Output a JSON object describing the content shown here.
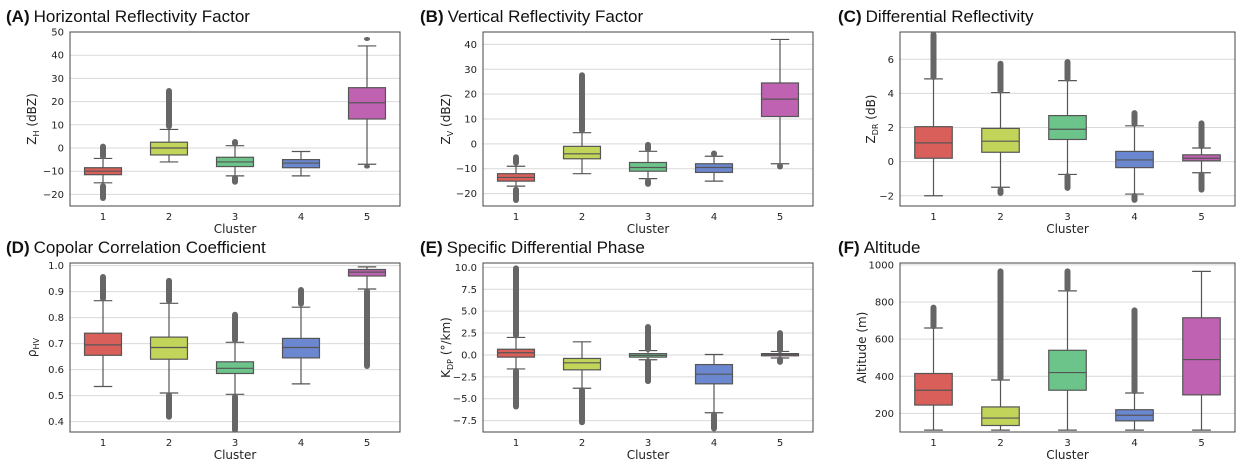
{
  "palette": [
    "#d9605a",
    "#c2d45a",
    "#6cc48a",
    "#6b87cf",
    "#bf62b2"
  ],
  "chart_data": [
    {
      "type": "box",
      "letter": "(A)",
      "title": "Horizontal Reflectivity Factor",
      "xlabel": "Cluster",
      "ylabel_main": "Z",
      "ylabel_sub": "H",
      "ylabel_unit": " (dBZ)",
      "categories": [
        "1",
        "2",
        "3",
        "4",
        "5"
      ],
      "ylim": [
        -25,
        50
      ],
      "yticks": [
        "50",
        "40",
        "30",
        "20",
        "10",
        "0",
        "−10",
        "−20"
      ],
      "ytick_values": [
        50,
        40,
        30,
        20,
        10,
        0,
        -10,
        -20
      ],
      "grid": true,
      "boxes": [
        {
          "whislo": -15,
          "q1": -11.5,
          "med": -10,
          "q3": -8.5,
          "whishi": -4.5,
          "fliers_lo": [
            -16,
            -22
          ],
          "fliers_hi": [
            -4,
            1
          ]
        },
        {
          "whislo": -6,
          "q1": -3,
          "med": 0,
          "q3": 2.5,
          "whishi": 8,
          "fliers_lo": [],
          "fliers_hi": [
            9,
            25
          ]
        },
        {
          "whislo": -12,
          "q1": -8,
          "med": -6,
          "q3": -4,
          "whishi": 1,
          "fliers_lo": [
            -12.5,
            -15
          ],
          "fliers_hi": [
            1.5,
            3
          ]
        },
        {
          "whislo": -12,
          "q1": -8.5,
          "med": -6.5,
          "q3": -5,
          "whishi": -1.5,
          "fliers_lo": [],
          "fliers_hi": []
        },
        {
          "whislo": -7,
          "q1": 12.5,
          "med": 19.5,
          "q3": 26,
          "whishi": 44,
          "fliers_lo": [
            -8,
            -8
          ],
          "fliers_hi": [
            47,
            47
          ]
        }
      ]
    },
    {
      "type": "box",
      "letter": "(B)",
      "title": "Vertical Reflectivity Factor",
      "xlabel": "Cluster",
      "ylabel_main": "Z",
      "ylabel_sub": "V",
      "ylabel_unit": " (dBZ)",
      "categories": [
        "1",
        "2",
        "3",
        "4",
        "5"
      ],
      "ylim": [
        -25,
        45
      ],
      "yticks": [
        "40",
        "30",
        "20",
        "10",
        "0",
        "−10",
        "−20"
      ],
      "ytick_values": [
        40,
        30,
        20,
        10,
        0,
        -10,
        -20
      ],
      "grid": true,
      "boxes": [
        {
          "whislo": -17,
          "q1": -15,
          "med": -13.5,
          "q3": -12,
          "whishi": -9,
          "fliers_lo": [
            -18,
            -23
          ],
          "fliers_hi": [
            -8,
            -5
          ]
        },
        {
          "whislo": -12,
          "q1": -6,
          "med": -4,
          "q3": -1,
          "whishi": 4.5,
          "fliers_lo": [],
          "fliers_hi": [
            5,
            28
          ]
        },
        {
          "whislo": -14,
          "q1": -11,
          "med": -9.5,
          "q3": -7.5,
          "whishi": -3,
          "fliers_lo": [
            -14.5,
            -16.5
          ],
          "fliers_hi": [
            -2.5,
            0
          ]
        },
        {
          "whislo": -15,
          "q1": -11.5,
          "med": -9.5,
          "q3": -8,
          "whishi": -5,
          "fliers_lo": [],
          "fliers_hi": [
            -4.5,
            -3.5
          ]
        },
        {
          "whislo": -8,
          "q1": 11,
          "med": 18,
          "q3": 24.5,
          "whishi": 42,
          "fliers_lo": [
            -8.5,
            -9.5
          ],
          "fliers_hi": []
        }
      ]
    },
    {
      "type": "box",
      "letter": "(C)",
      "title": "Differential Reflectivity",
      "xlabel": "Cluster",
      "ylabel_main": "Z",
      "ylabel_sub": "DR",
      "ylabel_unit": " (dB)",
      "categories": [
        "1",
        "2",
        "3",
        "4",
        "5"
      ],
      "ylim": [
        -2.6,
        7.6
      ],
      "yticks": [
        "6",
        "4",
        "2",
        "0",
        "−2"
      ],
      "ytick_values": [
        6,
        4,
        2,
        0,
        -2
      ],
      "grid": true,
      "boxes": [
        {
          "whislo": -2,
          "q1": 0.2,
          "med": 1.1,
          "q3": 2.05,
          "whishi": 4.85,
          "fliers_lo": [],
          "fliers_hi": [
            4.9,
            7.5
          ]
        },
        {
          "whislo": -1.5,
          "q1": 0.55,
          "med": 1.2,
          "q3": 1.95,
          "whishi": 4.05,
          "fliers_lo": [
            -1.6,
            -1.9
          ],
          "fliers_hi": [
            4.1,
            5.8
          ]
        },
        {
          "whislo": -0.75,
          "q1": 1.3,
          "med": 1.9,
          "q3": 2.7,
          "whishi": 4.75,
          "fliers_lo": [
            -0.8,
            -1.6
          ],
          "fliers_hi": [
            4.8,
            5.9
          ]
        },
        {
          "whislo": -1.9,
          "q1": -0.35,
          "med": 0.1,
          "q3": 0.6,
          "whishi": 2.1,
          "fliers_lo": [
            -1.95,
            -2.3
          ],
          "fliers_hi": [
            2.15,
            2.9
          ]
        },
        {
          "whislo": -0.65,
          "q1": 0.05,
          "med": 0.2,
          "q3": 0.4,
          "whishi": 0.8,
          "fliers_lo": [
            -0.7,
            -1.7
          ],
          "fliers_hi": [
            0.85,
            2.3
          ]
        }
      ]
    },
    {
      "type": "box",
      "letter": "(D)",
      "title": "Copolar Correlation Coefficient",
      "xlabel": "Cluster",
      "ylabel_main": "ρ",
      "ylabel_sub": "HV",
      "ylabel_unit": "",
      "categories": [
        "1",
        "2",
        "3",
        "4",
        "5"
      ],
      "ylim": [
        0.36,
        1.01
      ],
      "yticks": [
        "1.0",
        "0.9",
        "0.8",
        "0.7",
        "0.6",
        "0.5",
        "0.4"
      ],
      "ytick_values": [
        1.0,
        0.9,
        0.8,
        0.7,
        0.6,
        0.5,
        0.4
      ],
      "grid": true,
      "boxes": [
        {
          "whislo": 0.535,
          "q1": 0.655,
          "med": 0.695,
          "q3": 0.74,
          "whishi": 0.865,
          "fliers_lo": [],
          "fliers_hi": [
            0.87,
            0.96
          ]
        },
        {
          "whislo": 0.51,
          "q1": 0.64,
          "med": 0.685,
          "q3": 0.725,
          "whishi": 0.855,
          "fliers_lo": [
            0.505,
            0.415
          ],
          "fliers_hi": [
            0.86,
            0.945
          ]
        },
        {
          "whislo": 0.505,
          "q1": 0.585,
          "med": 0.605,
          "q3": 0.63,
          "whishi": 0.705,
          "fliers_lo": [
            0.5,
            0.365
          ],
          "fliers_hi": [
            0.71,
            0.815
          ]
        },
        {
          "whislo": 0.545,
          "q1": 0.645,
          "med": 0.685,
          "q3": 0.72,
          "whishi": 0.84,
          "fliers_lo": [],
          "fliers_hi": [
            0.85,
            0.91
          ]
        },
        {
          "whislo": 0.91,
          "q1": 0.96,
          "med": 0.975,
          "q3": 0.985,
          "whishi": 0.995,
          "fliers_lo": [
            0.905,
            0.61
          ],
          "fliers_hi": []
        }
      ]
    },
    {
      "type": "box",
      "letter": "(E)",
      "title": "Specific Differential Phase",
      "xlabel": "Cluster",
      "ylabel_main": "K",
      "ylabel_sub": "DP",
      "ylabel_unit": " (°/km)",
      "categories": [
        "1",
        "2",
        "3",
        "4",
        "5"
      ],
      "ylim": [
        -8.8,
        10.5
      ],
      "yticks": [
        "10.0",
        "7.5",
        "5.0",
        "2.5",
        "0.0",
        "−2.5",
        "−5.0",
        "−7.5"
      ],
      "ytick_values": [
        10,
        7.5,
        5,
        2.5,
        0,
        -2.5,
        -5,
        -7.5
      ],
      "grid": true,
      "boxes": [
        {
          "whislo": -1.6,
          "q1": -0.25,
          "med": 0.25,
          "q3": 0.65,
          "whishi": 2,
          "fliers_lo": [
            -1.7,
            -6
          ],
          "fliers_hi": [
            2.1,
            10
          ]
        },
        {
          "whislo": -3.8,
          "q1": -1.7,
          "med": -0.9,
          "q3": -0.4,
          "whishi": 1.5,
          "fliers_lo": [
            -3.9,
            -7.8
          ],
          "fliers_hi": []
        },
        {
          "whislo": -0.55,
          "q1": -0.25,
          "med": -0.05,
          "q3": 0.15,
          "whishi": 0.5,
          "fliers_lo": [
            -0.6,
            -3.1
          ],
          "fliers_hi": [
            0.55,
            3.3
          ]
        },
        {
          "whislo": -6.6,
          "q1": -3.3,
          "med": -2.2,
          "q3": -1.1,
          "whishi": 0.05,
          "fliers_lo": [
            -6.7,
            -8.5
          ],
          "fliers_hi": []
        },
        {
          "whislo": -0.35,
          "q1": -0.1,
          "med": 0.05,
          "q3": 0.15,
          "whishi": 0.4,
          "fliers_lo": [
            -0.4,
            -0.9
          ],
          "fliers_hi": [
            0.45,
            2.6
          ]
        }
      ]
    },
    {
      "type": "box",
      "letter": "(F)",
      "title": "Altitude",
      "xlabel": "Cluster",
      "ylabel_main": "Altitude (m)",
      "ylabel_sub": "",
      "ylabel_unit": "",
      "categories": [
        "1",
        "2",
        "3",
        "4",
        "5"
      ],
      "ylim": [
        100,
        1010
      ],
      "yticks": [
        "1000",
        "800",
        "600",
        "400",
        "200"
      ],
      "ytick_values": [
        1000,
        800,
        600,
        400,
        200
      ],
      "grid": true,
      "boxes": [
        {
          "whislo": 110,
          "q1": 245,
          "med": 325,
          "q3": 415,
          "whishi": 660,
          "fliers_lo": [],
          "fliers_hi": [
            665,
            775
          ]
        },
        {
          "whislo": 110,
          "q1": 135,
          "med": 175,
          "q3": 235,
          "whishi": 380,
          "fliers_lo": [],
          "fliers_hi": [
            385,
            970
          ]
        },
        {
          "whislo": 110,
          "q1": 325,
          "med": 420,
          "q3": 540,
          "whishi": 860,
          "fliers_lo": [],
          "fliers_hi": [
            865,
            970
          ]
        },
        {
          "whislo": 110,
          "q1": 160,
          "med": 190,
          "q3": 220,
          "whishi": 310,
          "fliers_lo": [],
          "fliers_hi": [
            315,
            760
          ]
        },
        {
          "whislo": 110,
          "q1": 300,
          "med": 490,
          "q3": 715,
          "whishi": 965,
          "fliers_lo": [],
          "fliers_hi": []
        }
      ]
    }
  ]
}
